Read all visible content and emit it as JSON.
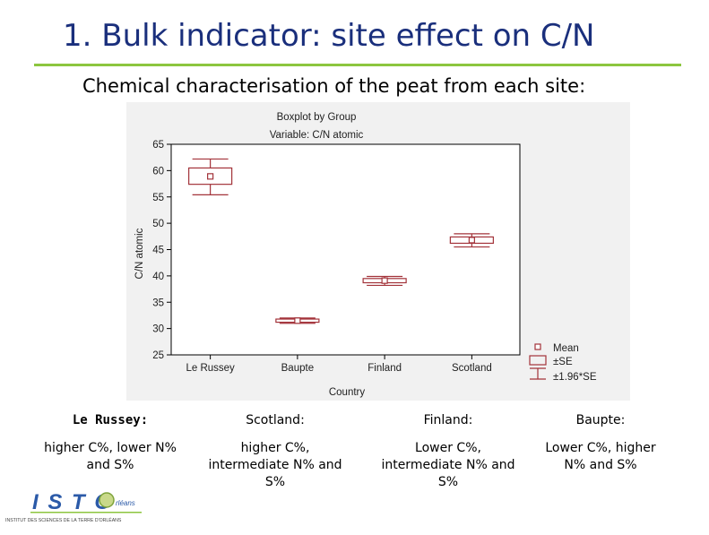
{
  "slide": {
    "title": "1. Bulk indicator: site effect on C/N",
    "subtitle": "Chemical characterisation of the peat from each site:"
  },
  "colors": {
    "title": "#1a2f7c",
    "accent": "#8cc63f",
    "box": "#a3333a"
  },
  "chart_data": {
    "type": "boxplot",
    "title": "Boxplot by Group",
    "subtitle": "Variable: C/N atomic",
    "xlabel": "Country",
    "ylabel": "C/N atomic",
    "ylim": [
      25,
      65
    ],
    "yticks": [
      25,
      30,
      35,
      40,
      45,
      50,
      55,
      60,
      65
    ],
    "categories": [
      "Le Russey",
      "Baupte",
      "Finland",
      "Scotland"
    ],
    "series": [
      {
        "mean": 58.9,
        "se_low": 57.4,
        "se_high": 60.5,
        "ci_low": 55.4,
        "ci_high": 62.2
      },
      {
        "mean": 31.5,
        "se_low": 31.2,
        "se_high": 31.8,
        "ci_low": 31.0,
        "ci_high": 32.0
      },
      {
        "mean": 39.1,
        "se_low": 38.7,
        "se_high": 39.5,
        "ci_low": 38.2,
        "ci_high": 39.9
      },
      {
        "mean": 46.8,
        "se_low": 46.2,
        "se_high": 47.4,
        "ci_low": 45.5,
        "ci_high": 48.0
      }
    ],
    "legend": [
      "Mean",
      "±SE",
      "±1.96*SE"
    ],
    "legend_position": "bottom-right"
  },
  "sites": [
    {
      "name": "Le Russey:",
      "desc": "higher C%, lower N% and S%"
    },
    {
      "name": "Scotland:",
      "desc": "higher C%, intermediate N% and S%"
    },
    {
      "name": "Finland:",
      "desc": "Lower C%, intermediate N% and S%"
    },
    {
      "name": "Baupte:",
      "desc": "Lower C%, higher N% and S%"
    }
  ],
  "logo": {
    "mark": "I S T O",
    "script": "rléans",
    "tagline": "INSTITUT DES SCIENCES DE LA TERRE D'ORLÉANS"
  }
}
